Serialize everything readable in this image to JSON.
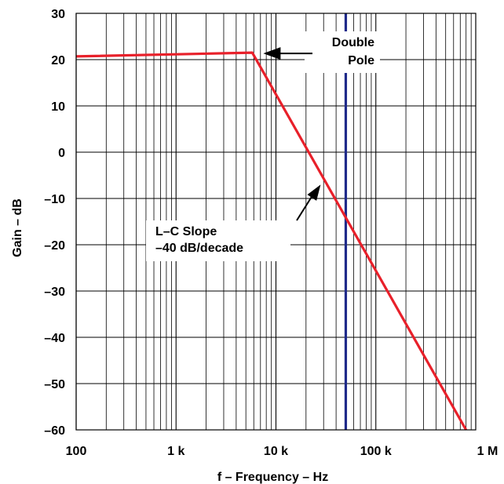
{
  "chart_data": {
    "type": "line",
    "title": "",
    "xlabel": "f – Frequency – Hz",
    "ylabel": "Gain – dB",
    "xscale": "log",
    "xlim": [
      100,
      1000000
    ],
    "ylim": [
      -60,
      30
    ],
    "grid": true,
    "x_ticks": [
      {
        "value": 100,
        "label": "100"
      },
      {
        "value": 1000,
        "label": "1 k"
      },
      {
        "value": 10000,
        "label": "10 k"
      },
      {
        "value": 100000,
        "label": "100 k"
      },
      {
        "value": 1000000,
        "label": "1 M"
      }
    ],
    "y_ticks": [
      {
        "value": 30,
        "label": "30"
      },
      {
        "value": 20,
        "label": "20"
      },
      {
        "value": 10,
        "label": "10"
      },
      {
        "value": 0,
        "label": "0"
      },
      {
        "value": -10,
        "label": "–10"
      },
      {
        "value": -20,
        "label": "–20"
      },
      {
        "value": -30,
        "label": "–30"
      },
      {
        "value": -40,
        "label": "–40"
      },
      {
        "value": -50,
        "label": "–50"
      },
      {
        "value": -60,
        "label": "–60"
      }
    ],
    "series": [
      {
        "color": "#e8202a",
        "x": [
          100,
          5800,
          800000
        ],
        "y": [
          20.7,
          21.5,
          -60
        ]
      }
    ],
    "vertical_markers": [
      {
        "x": 50000,
        "color": "#1f2a8a"
      }
    ],
    "annotations": [
      {
        "lines": [
          "Double",
          "Pole"
        ],
        "points_to": {
          "x": 5800,
          "y": 21.5
        }
      },
      {
        "lines": [
          "L–C Slope",
          "–40 dB/decade"
        ],
        "points_to": {
          "x": 28000,
          "y": -6
        }
      }
    ]
  }
}
